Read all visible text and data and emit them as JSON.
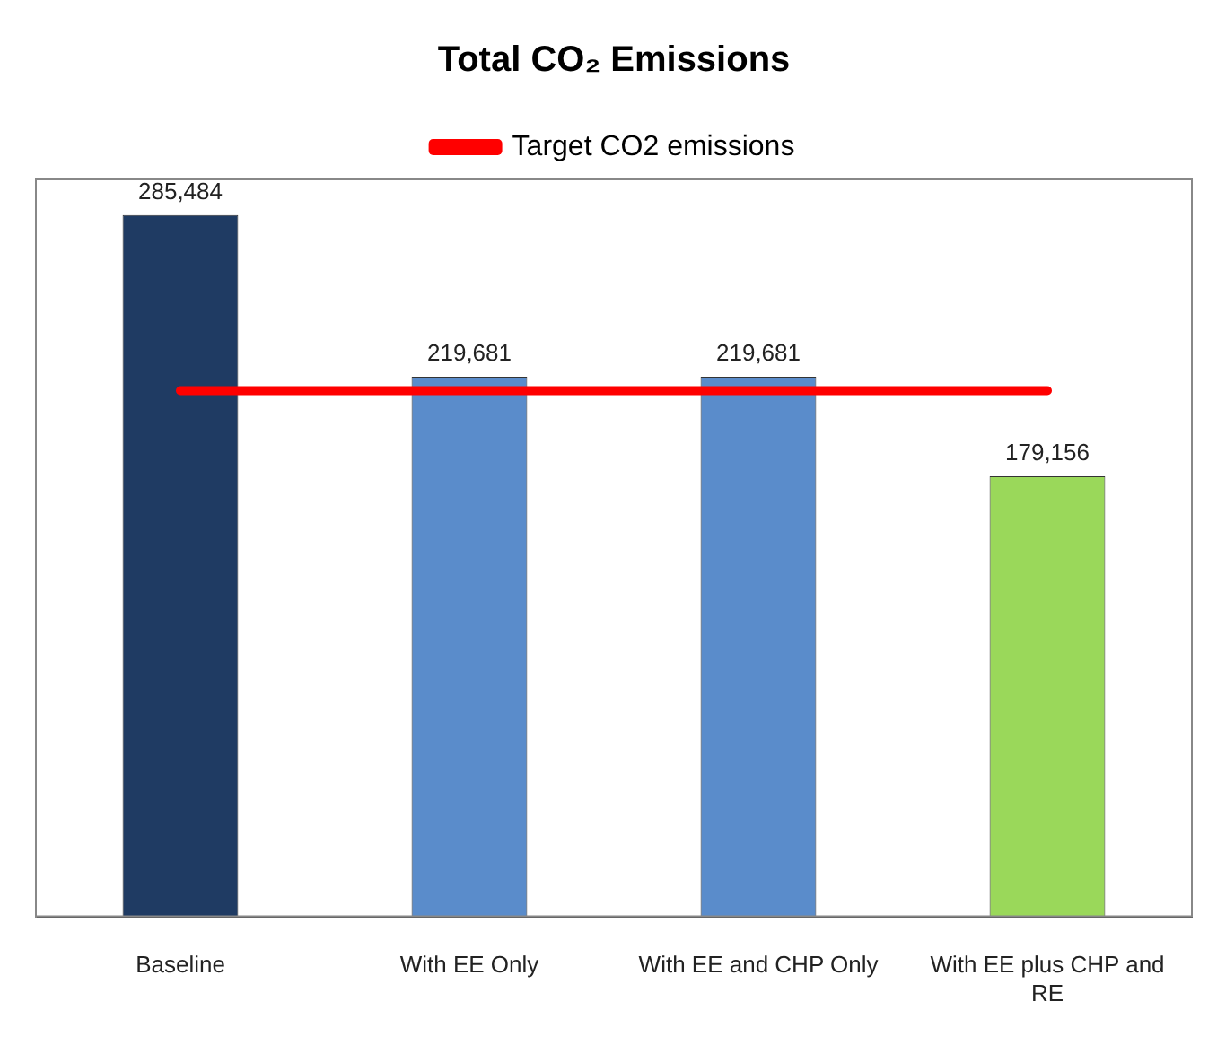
{
  "chart_data": {
    "type": "bar",
    "title": "Total CO₂ Emissions",
    "categories": [
      "Baseline",
      "With EE Only",
      "With EE and CHP Only",
      "With EE plus CHP and RE"
    ],
    "series": [
      {
        "colors": [
          "#1f3b63",
          "#5a8ccb",
          "#5a8ccb",
          "#9ad85a"
        ],
        "values": [
          285484,
          219681,
          219681,
          179156
        ],
        "value_labels": [
          "285,484",
          "219,681",
          "219,681",
          "179,156"
        ]
      },
      {
        "type": "line",
        "name": "Target CO2 emissions",
        "color": "#ff0000",
        "values": [
          214000,
          214000,
          214000,
          214000
        ],
        "marker": "none"
      }
    ],
    "tick_labels": "x",
    "grid": false,
    "legend": "top"
  }
}
